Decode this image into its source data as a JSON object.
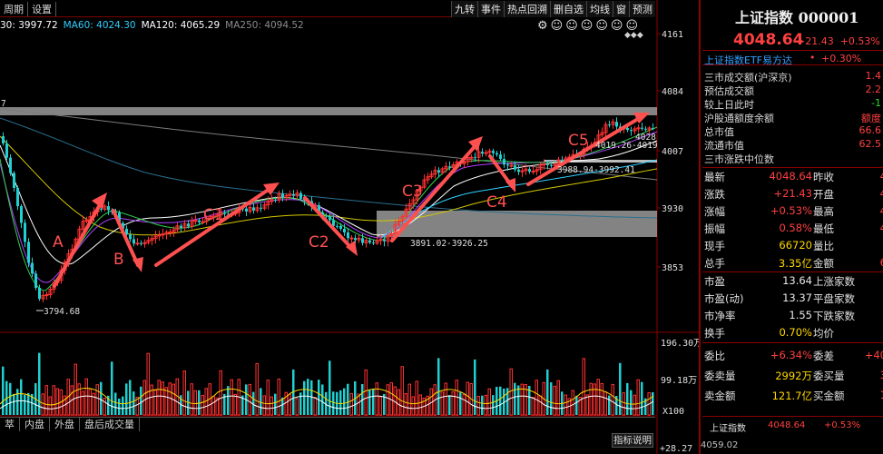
{
  "toolbar": {
    "left": [
      "周期",
      "设置"
    ],
    "right": [
      "九转",
      "事件",
      "热点回溯",
      "删自选",
      "均线",
      "窗",
      "预测"
    ]
  },
  "ma_legend": [
    {
      "text": "30: 3997.72",
      "color": "#ffffff"
    },
    {
      "text": "MA60: 4024.30",
      "color": "#2fd0ff"
    },
    {
      "text": "MA120: 4065.29",
      "color": "#ffffff"
    },
    {
      "text": "MA250: 4094.52",
      "color": "#8c8c8c"
    }
  ],
  "chart": {
    "y_ticks": [
      "4161",
      "4084",
      "4007",
      "3930",
      "3853"
    ],
    "vol_ticks": [
      "196.30万",
      "99.18万",
      "X100"
    ],
    "left_edge_label": "7",
    "annotations": {
      "low": "3794.68",
      "range1": "3891.02-3926.25",
      "range2": "3988.94-3992.41",
      "range3": "4019.26-4019",
      "peak": "4028"
    },
    "wave_labels": [
      "A",
      "B",
      "C1",
      "C2",
      "C3",
      "C4",
      "C5"
    ],
    "bottom_left_value": "+28.27",
    "bottom_right_value": "4059.02"
  },
  "bottom_tabs": [
    "萃",
    "内盘",
    "外盘",
    "盘后成交量"
  ],
  "indicator_button": "指标说明",
  "panel": {
    "title": "上证指数 000001",
    "price": "4048.64",
    "change": "+21.43",
    "change_pct": "+0.53%",
    "etf_name": "上证指数ETF易方达",
    "etf_pct": "+0.30%",
    "stats": [
      {
        "label": "三市成交额(沪深京)",
        "value": "1.4",
        "color": "#ff4040"
      },
      {
        "label": "预估成交额",
        "value": "2.2",
        "color": "#ff4040"
      },
      {
        "label": "较上日此时",
        "value": "-1",
        "color": "#20e020"
      },
      {
        "label": "沪股通额度余额",
        "value": "额度",
        "color": "#ff4040"
      },
      {
        "label": "总市值",
        "value": "66.6",
        "color": "#ff4040"
      },
      {
        "label": "流通市值",
        "value": "62.5",
        "color": "#ff4040"
      },
      {
        "label": "三市涨跌中位数",
        "value": "",
        "color": "#ff4040"
      }
    ],
    "quote_rows_1": [
      {
        "l1": "最新",
        "v1": "4048.64",
        "l2": "昨收",
        "v2": "4"
      },
      {
        "l1": "涨跌",
        "v1": "+21.43",
        "l2": "开盘",
        "v2": "4"
      },
      {
        "l1": "涨幅",
        "v1": "+0.53%",
        "l2": "最高",
        "v2": "4"
      },
      {
        "l1": "振幅",
        "v1": "0.58%",
        "l2": "最低",
        "v2": "4"
      },
      {
        "l1": "现手",
        "v1": "66720",
        "l2": "量比",
        "v2": ""
      },
      {
        "l1": "总手",
        "v1": "3.35亿",
        "l2": "金额",
        "v2": "6"
      }
    ],
    "quote_rows_2": [
      {
        "l1": "市盈",
        "v1": "13.64",
        "l2": "上涨家数",
        "v2": ""
      },
      {
        "l1": "市盈(动)",
        "v1": "13.37",
        "l2": "平盘家数",
        "v2": ""
      },
      {
        "l1": "市净率",
        "v1": "1.55",
        "l2": "下跌家数",
        "v2": ""
      },
      {
        "l1": "换手",
        "v1": "0.70%",
        "l2": "均价",
        "v2": ""
      }
    ],
    "quote_rows_3": [
      {
        "l1": "委比",
        "v1": "+6.34%",
        "l2": "委差",
        "v2": "+40"
      },
      {
        "l1": "委卖量",
        "v1": "2992万",
        "l2": "委买量",
        "v2": "3"
      },
      {
        "l1": "卖金额",
        "v1": "121.7亿",
        "l2": "买金额",
        "v2": "1"
      }
    ],
    "ticker": {
      "name": "上证指数",
      "price": "4048.64",
      "pct": "+0.53%"
    }
  }
}
